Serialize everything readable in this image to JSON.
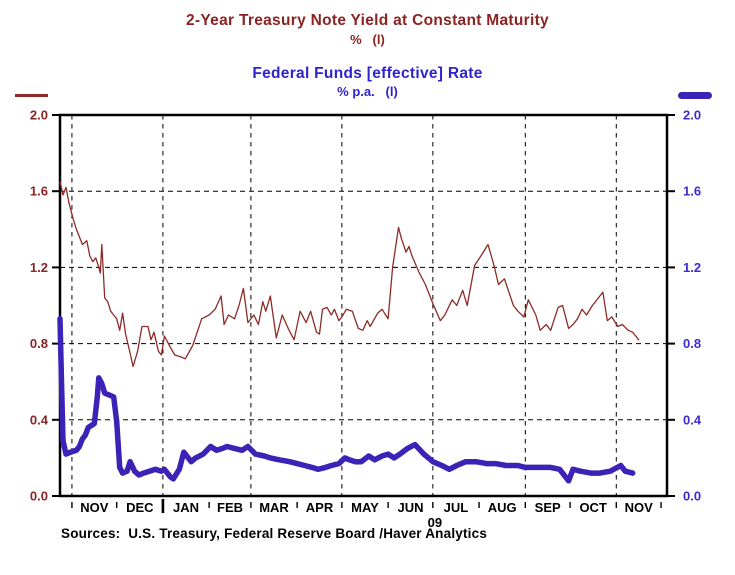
{
  "header": {
    "series1_title": "2-Year Treasury Note Yield at Constant Maturity",
    "series1_subtitle": "%   (l)",
    "series2_title": "Federal Funds [effective] Rate",
    "series2_subtitle": "% p.a.   (l)",
    "title1_color": "#8B2323",
    "title2_color": "#2E24CE"
  },
  "footer": {
    "sources": "Sources:  U.S. Treasury, Federal Reserve Board /Haver Analytics"
  },
  "chart_data": {
    "type": "line",
    "title": "2-Year Treasury Note Yield at Constant Maturity / Federal Funds [effective] Rate",
    "xlabel": "",
    "ylabel": "%",
    "ylim": [
      0.0,
      2.0
    ],
    "grid": true,
    "y_axis": {
      "ticks": [
        0.0,
        0.4,
        0.8,
        1.2,
        1.6,
        2.0
      ],
      "left_label_color": "#8B2323",
      "right_label_color": "#3A2BD4"
    },
    "x_axis": {
      "domain_start": "2008-10-24",
      "domain_end": "2009-12-05",
      "month_labels": [
        "NOV",
        "DEC",
        "JAN",
        "FEB",
        "MAR",
        "APR",
        "MAY",
        "JUN",
        "JUL",
        "AUG",
        "SEP",
        "OCT",
        "NOV"
      ],
      "month_boundaries": [
        "2008-11-01",
        "2008-12-01",
        "2009-01-01",
        "2009-02-01",
        "2009-03-01",
        "2009-04-01",
        "2009-05-01",
        "2009-06-01",
        "2009-07-01",
        "2009-08-01",
        "2009-09-01",
        "2009-10-01",
        "2009-11-01",
        "2009-12-01"
      ],
      "gridline_dates": [
        "2008-11-01",
        "2009-01-01",
        "2009-03-01",
        "2009-05-01",
        "2009-07-01",
        "2009-09-01",
        "2009-11-01"
      ],
      "year_label": "09",
      "year_label_date": "2009-07-01",
      "year_tick_date": "2009-01-01"
    },
    "series": [
      {
        "name": "2-Year Treasury Note Yield at Constant Maturity",
        "unit": "%",
        "axis": "left",
        "color": "#8E2B26",
        "line_width": 1.3,
        "points": [
          [
            "2008-10-24",
            1.65
          ],
          [
            "2008-10-26",
            1.58
          ],
          [
            "2008-10-28",
            1.62
          ],
          [
            "2008-10-30",
            1.54
          ],
          [
            "2008-11-02",
            1.45
          ],
          [
            "2008-11-04",
            1.4
          ],
          [
            "2008-11-06",
            1.36
          ],
          [
            "2008-11-08",
            1.32
          ],
          [
            "2008-11-11",
            1.34
          ],
          [
            "2008-11-13",
            1.26
          ],
          [
            "2008-11-15",
            1.23
          ],
          [
            "2008-11-17",
            1.25
          ],
          [
            "2008-11-19",
            1.2
          ],
          [
            "2008-11-20",
            1.17
          ],
          [
            "2008-11-21",
            1.32
          ],
          [
            "2008-11-23",
            1.04
          ],
          [
            "2008-11-25",
            1.02
          ],
          [
            "2008-11-27",
            0.97
          ],
          [
            "2008-11-29",
            0.95
          ],
          [
            "2008-12-01",
            0.93
          ],
          [
            "2008-12-03",
            0.87
          ],
          [
            "2008-12-05",
            0.96
          ],
          [
            "2008-12-07",
            0.85
          ],
          [
            "2008-12-10",
            0.75
          ],
          [
            "2008-12-12",
            0.68
          ],
          [
            "2008-12-15",
            0.76
          ],
          [
            "2008-12-18",
            0.89
          ],
          [
            "2008-12-22",
            0.89
          ],
          [
            "2008-12-24",
            0.82
          ],
          [
            "2008-12-26",
            0.86
          ],
          [
            "2008-12-29",
            0.76
          ],
          [
            "2008-12-31",
            0.74
          ],
          [
            "2009-01-02",
            0.84
          ],
          [
            "2009-01-06",
            0.78
          ],
          [
            "2009-01-09",
            0.74
          ],
          [
            "2009-01-13",
            0.73
          ],
          [
            "2009-01-16",
            0.72
          ],
          [
            "2009-01-21",
            0.79
          ],
          [
            "2009-01-27",
            0.93
          ],
          [
            "2009-02-01",
            0.95
          ],
          [
            "2009-02-05",
            0.98
          ],
          [
            "2009-02-09",
            1.05
          ],
          [
            "2009-02-11",
            0.9
          ],
          [
            "2009-02-14",
            0.95
          ],
          [
            "2009-02-18",
            0.93
          ],
          [
            "2009-02-21",
            1.0
          ],
          [
            "2009-02-24",
            1.09
          ],
          [
            "2009-02-27",
            0.91
          ],
          [
            "2009-03-03",
            0.95
          ],
          [
            "2009-03-06",
            0.9
          ],
          [
            "2009-03-09",
            1.02
          ],
          [
            "2009-03-11",
            0.97
          ],
          [
            "2009-03-14",
            1.05
          ],
          [
            "2009-03-18",
            0.83
          ],
          [
            "2009-03-22",
            0.95
          ],
          [
            "2009-03-26",
            0.88
          ],
          [
            "2009-03-30",
            0.82
          ],
          [
            "2009-04-03",
            0.97
          ],
          [
            "2009-04-07",
            0.91
          ],
          [
            "2009-04-10",
            0.97
          ],
          [
            "2009-04-14",
            0.86
          ],
          [
            "2009-04-16",
            0.85
          ],
          [
            "2009-04-18",
            0.98
          ],
          [
            "2009-04-21",
            0.99
          ],
          [
            "2009-04-24",
            0.95
          ],
          [
            "2009-04-26",
            0.98
          ],
          [
            "2009-04-29",
            0.92
          ],
          [
            "2009-05-01",
            0.94
          ],
          [
            "2009-05-04",
            0.98
          ],
          [
            "2009-05-08",
            0.97
          ],
          [
            "2009-05-12",
            0.88
          ],
          [
            "2009-05-15",
            0.87
          ],
          [
            "2009-05-18",
            0.92
          ],
          [
            "2009-05-20",
            0.89
          ],
          [
            "2009-05-25",
            0.96
          ],
          [
            "2009-05-28",
            0.98
          ],
          [
            "2009-06-01",
            0.93
          ],
          [
            "2009-06-04",
            1.2
          ],
          [
            "2009-06-08",
            1.41
          ],
          [
            "2009-06-10",
            1.35
          ],
          [
            "2009-06-13",
            1.28
          ],
          [
            "2009-06-15",
            1.31
          ],
          [
            "2009-06-17",
            1.26
          ],
          [
            "2009-06-22",
            1.17
          ],
          [
            "2009-06-26",
            1.11
          ],
          [
            "2009-07-01",
            1.01
          ],
          [
            "2009-07-06",
            0.92
          ],
          [
            "2009-07-09",
            0.95
          ],
          [
            "2009-07-14",
            1.03
          ],
          [
            "2009-07-17",
            1.0
          ],
          [
            "2009-07-21",
            1.08
          ],
          [
            "2009-07-24",
            1.0
          ],
          [
            "2009-07-29",
            1.21
          ],
          [
            "2009-08-03",
            1.27
          ],
          [
            "2009-08-07",
            1.32
          ],
          [
            "2009-08-11",
            1.21
          ],
          [
            "2009-08-14",
            1.11
          ],
          [
            "2009-08-18",
            1.14
          ],
          [
            "2009-08-24",
            1.0
          ],
          [
            "2009-08-27",
            0.97
          ],
          [
            "2009-08-31",
            0.94
          ],
          [
            "2009-09-03",
            1.03
          ],
          [
            "2009-09-08",
            0.95
          ],
          [
            "2009-09-11",
            0.87
          ],
          [
            "2009-09-15",
            0.9
          ],
          [
            "2009-09-18",
            0.87
          ],
          [
            "2009-09-23",
            0.99
          ],
          [
            "2009-09-26",
            1.0
          ],
          [
            "2009-09-30",
            0.88
          ],
          [
            "2009-10-03",
            0.9
          ],
          [
            "2009-10-06",
            0.93
          ],
          [
            "2009-10-09",
            0.98
          ],
          [
            "2009-10-12",
            0.95
          ],
          [
            "2009-10-16",
            1.0
          ],
          [
            "2009-10-20",
            1.04
          ],
          [
            "2009-10-23",
            1.07
          ],
          [
            "2009-10-26",
            0.92
          ],
          [
            "2009-10-29",
            0.94
          ],
          [
            "2009-11-02",
            0.89
          ],
          [
            "2009-11-05",
            0.9
          ],
          [
            "2009-11-09",
            0.87
          ],
          [
            "2009-11-12",
            0.86
          ],
          [
            "2009-11-16",
            0.82
          ]
        ]
      },
      {
        "name": "Federal Funds [effective] Rate",
        "unit": "% p.a.",
        "axis": "left",
        "color": "#3D22B8",
        "line_width": 5.5,
        "points": [
          [
            "2008-10-24",
            0.93
          ],
          [
            "2008-10-25",
            0.6
          ],
          [
            "2008-10-26",
            0.29
          ],
          [
            "2008-10-28",
            0.22
          ],
          [
            "2008-10-31",
            0.23
          ],
          [
            "2008-11-04",
            0.24
          ],
          [
            "2008-11-06",
            0.26
          ],
          [
            "2008-11-08",
            0.3
          ],
          [
            "2008-11-10",
            0.32
          ],
          [
            "2008-11-12",
            0.36
          ],
          [
            "2008-11-14",
            0.37
          ],
          [
            "2008-11-16",
            0.38
          ],
          [
            "2008-11-18",
            0.52
          ],
          [
            "2008-11-19",
            0.62
          ],
          [
            "2008-11-21",
            0.59
          ],
          [
            "2008-11-23",
            0.54
          ],
          [
            "2008-11-26",
            0.53
          ],
          [
            "2008-11-29",
            0.52
          ],
          [
            "2008-12-01",
            0.39
          ],
          [
            "2008-12-03",
            0.15
          ],
          [
            "2008-12-05",
            0.12
          ],
          [
            "2008-12-08",
            0.13
          ],
          [
            "2008-12-10",
            0.18
          ],
          [
            "2008-12-13",
            0.13
          ],
          [
            "2008-12-16",
            0.11
          ],
          [
            "2008-12-19",
            0.12
          ],
          [
            "2008-12-23",
            0.13
          ],
          [
            "2008-12-27",
            0.14
          ],
          [
            "2008-12-31",
            0.13
          ],
          [
            "2009-01-02",
            0.14
          ],
          [
            "2009-01-06",
            0.1
          ],
          [
            "2009-01-08",
            0.09
          ],
          [
            "2009-01-12",
            0.14
          ],
          [
            "2009-01-15",
            0.23
          ],
          [
            "2009-01-20",
            0.18
          ],
          [
            "2009-01-23",
            0.2
          ],
          [
            "2009-01-28",
            0.22
          ],
          [
            "2009-02-02",
            0.26
          ],
          [
            "2009-02-06",
            0.24
          ],
          [
            "2009-02-10",
            0.25
          ],
          [
            "2009-02-13",
            0.26
          ],
          [
            "2009-02-18",
            0.25
          ],
          [
            "2009-02-23",
            0.24
          ],
          [
            "2009-02-27",
            0.26
          ],
          [
            "2009-03-04",
            0.22
          ],
          [
            "2009-03-10",
            0.21
          ],
          [
            "2009-03-14",
            0.2
          ],
          [
            "2009-03-20",
            0.19
          ],
          [
            "2009-03-27",
            0.18
          ],
          [
            "2009-04-01",
            0.17
          ],
          [
            "2009-04-06",
            0.16
          ],
          [
            "2009-04-11",
            0.15
          ],
          [
            "2009-04-15",
            0.14
          ],
          [
            "2009-04-20",
            0.15
          ],
          [
            "2009-04-24",
            0.16
          ],
          [
            "2009-04-29",
            0.17
          ],
          [
            "2009-05-03",
            0.2
          ],
          [
            "2009-05-06",
            0.19
          ],
          [
            "2009-05-10",
            0.18
          ],
          [
            "2009-05-14",
            0.18
          ],
          [
            "2009-05-19",
            0.21
          ],
          [
            "2009-05-23",
            0.19
          ],
          [
            "2009-05-28",
            0.21
          ],
          [
            "2009-06-01",
            0.22
          ],
          [
            "2009-06-05",
            0.2
          ],
          [
            "2009-06-09",
            0.22
          ],
          [
            "2009-06-14",
            0.25
          ],
          [
            "2009-06-19",
            0.27
          ],
          [
            "2009-06-25",
            0.22
          ],
          [
            "2009-07-01",
            0.18
          ],
          [
            "2009-07-07",
            0.16
          ],
          [
            "2009-07-12",
            0.14
          ],
          [
            "2009-07-17",
            0.16
          ],
          [
            "2009-07-23",
            0.18
          ],
          [
            "2009-07-30",
            0.18
          ],
          [
            "2009-08-06",
            0.17
          ],
          [
            "2009-08-12",
            0.17
          ],
          [
            "2009-08-19",
            0.16
          ],
          [
            "2009-08-27",
            0.16
          ],
          [
            "2009-09-01",
            0.15
          ],
          [
            "2009-09-08",
            0.15
          ],
          [
            "2009-09-14",
            0.15
          ],
          [
            "2009-09-18",
            0.15
          ],
          [
            "2009-09-24",
            0.14
          ],
          [
            "2009-09-30",
            0.08
          ],
          [
            "2009-10-03",
            0.14
          ],
          [
            "2009-10-08",
            0.13
          ],
          [
            "2009-10-15",
            0.12
          ],
          [
            "2009-10-21",
            0.12
          ],
          [
            "2009-10-28",
            0.13
          ],
          [
            "2009-11-04",
            0.16
          ],
          [
            "2009-11-07",
            0.13
          ],
          [
            "2009-11-12",
            0.12
          ]
        ]
      }
    ]
  }
}
